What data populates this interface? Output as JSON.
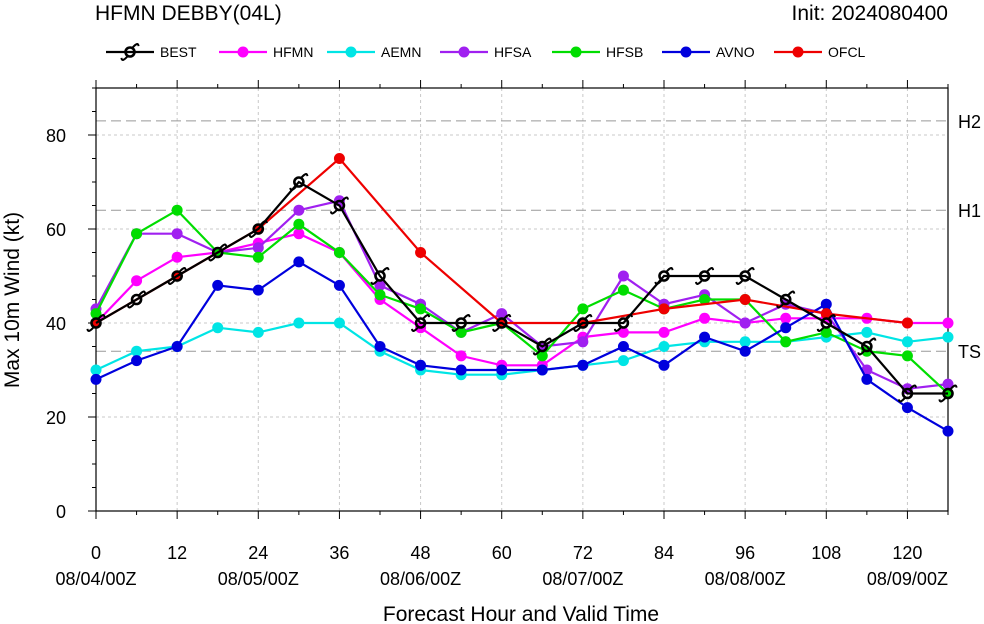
{
  "title_left": "HFMN DEBBY(04L)",
  "title_right": "Init: 2024080400",
  "chart_data": {
    "type": "line",
    "xlabel": "Forecast Hour and Valid Time",
    "ylabel": "Max 10m Wind (kt)",
    "xlim": [
      0,
      126
    ],
    "ylim": [
      0,
      90
    ],
    "x_ticks": [
      0,
      12,
      24,
      36,
      48,
      60,
      72,
      84,
      96,
      108,
      120
    ],
    "x_date_labels": [
      {
        "x": 0,
        "label": "08/04/00Z"
      },
      {
        "x": 24,
        "label": "08/05/00Z"
      },
      {
        "x": 48,
        "label": "08/06/00Z"
      },
      {
        "x": 72,
        "label": "08/07/00Z"
      },
      {
        "x": 96,
        "label": "08/08/00Z"
      },
      {
        "x": 120,
        "label": "08/09/00Z"
      }
    ],
    "y_ticks": [
      0,
      20,
      40,
      60,
      80
    ],
    "grid": true,
    "legend_position": "top",
    "thresholds": [
      {
        "label": "TS",
        "value": 34
      },
      {
        "label": "H1",
        "value": 64
      },
      {
        "label": "H2",
        "value": 83
      }
    ],
    "series": [
      {
        "name": "HFMN",
        "color": "#ff00ff",
        "x": [
          0,
          6,
          12,
          18,
          24,
          30,
          36,
          42,
          48,
          54,
          60,
          66,
          72,
          78,
          84,
          90,
          96,
          102,
          108,
          114,
          120,
          126
        ],
        "y": [
          40,
          49,
          54,
          55,
          57,
          59,
          55,
          45,
          39,
          33,
          31,
          31,
          37,
          38,
          38,
          41,
          40,
          41,
          41,
          41,
          40,
          40
        ]
      },
      {
        "name": "AEMN",
        "color": "#00e5e5",
        "x": [
          0,
          6,
          12,
          18,
          24,
          30,
          36,
          42,
          48,
          54,
          60,
          66,
          72,
          78,
          84,
          90,
          96,
          102,
          108,
          114,
          120,
          126
        ],
        "y": [
          30,
          34,
          35,
          39,
          38,
          40,
          40,
          34,
          30,
          29,
          29,
          30,
          31,
          32,
          35,
          36,
          36,
          36,
          37,
          38,
          36,
          37
        ]
      },
      {
        "name": "HFSA",
        "color": "#a020f0",
        "x": [
          0,
          6,
          12,
          18,
          24,
          30,
          36,
          42,
          48,
          54,
          60,
          66,
          72,
          78,
          84,
          90,
          96,
          102,
          108,
          114,
          120,
          126
        ],
        "y": [
          43,
          59,
          59,
          55,
          56,
          64,
          66,
          48,
          44,
          38,
          42,
          35,
          36,
          50,
          44,
          46,
          40,
          44,
          42,
          30,
          26,
          27
        ]
      },
      {
        "name": "HFSB",
        "color": "#00dd00",
        "x": [
          0,
          6,
          12,
          18,
          24,
          30,
          36,
          42,
          48,
          54,
          60,
          66,
          72,
          78,
          84,
          90,
          96,
          102,
          108,
          114,
          120,
          126
        ],
        "y": [
          42,
          59,
          64,
          55,
          54,
          61,
          55,
          46,
          43,
          38,
          40,
          33,
          43,
          47,
          43,
          45,
          45,
          36,
          38,
          34,
          33,
          25
        ]
      },
      {
        "name": "AVNO",
        "color": "#0000dd",
        "x": [
          0,
          6,
          12,
          18,
          24,
          30,
          36,
          42,
          48,
          54,
          60,
          66,
          72,
          78,
          84,
          90,
          96,
          102,
          108,
          114,
          120,
          126
        ],
        "y": [
          28,
          32,
          35,
          48,
          47,
          53,
          48,
          35,
          31,
          30,
          30,
          30,
          31,
          35,
          31,
          37,
          34,
          39,
          44,
          28,
          22,
          17
        ]
      },
      {
        "name": "OFCL",
        "color": "#ee0000",
        "x": [
          0,
          12,
          24,
          36,
          48,
          60,
          72,
          84,
          96,
          108,
          120
        ],
        "y": [
          40,
          50,
          60,
          75,
          55,
          40,
          40,
          43,
          45,
          42,
          40
        ]
      },
      {
        "name": "BEST",
        "color": "#000000",
        "x": [
          0,
          6,
          12,
          18,
          24,
          30,
          36,
          42,
          48,
          54,
          60,
          66,
          72,
          78,
          84,
          90,
          96,
          102,
          108,
          114,
          120,
          126
        ],
        "y": [
          40,
          45,
          50,
          55,
          60,
          70,
          65,
          50,
          40,
          40,
          40,
          35,
          40,
          40,
          50,
          50,
          50,
          45,
          40,
          35,
          25,
          25
        ]
      }
    ]
  }
}
